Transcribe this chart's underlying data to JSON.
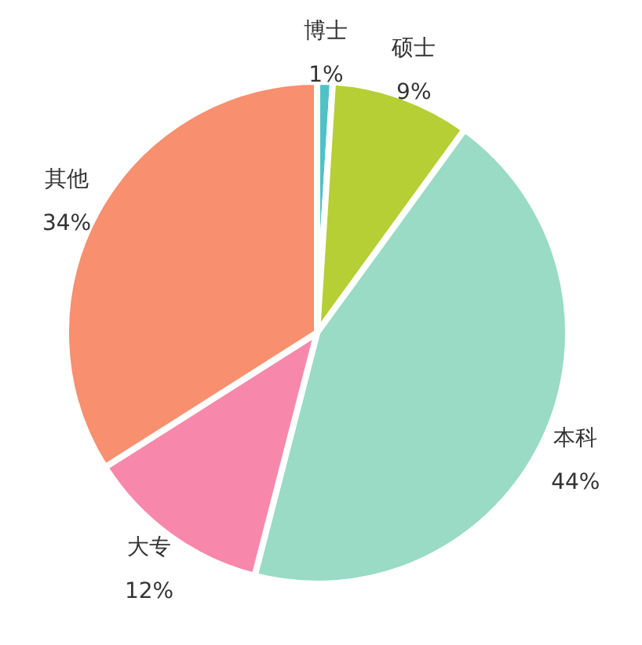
{
  "chart_data": {
    "type": "pie",
    "categories": [
      "博士",
      "硕士",
      "本科",
      "大专",
      "其他"
    ],
    "values": [
      1,
      9,
      44,
      12,
      34
    ],
    "value_labels": [
      "1%",
      "9%",
      "44%",
      "12%",
      "34%"
    ],
    "colors": [
      "#4fc1c7",
      "#b5cf35",
      "#99dbc4",
      "#f788ab",
      "#f88f6f"
    ]
  }
}
